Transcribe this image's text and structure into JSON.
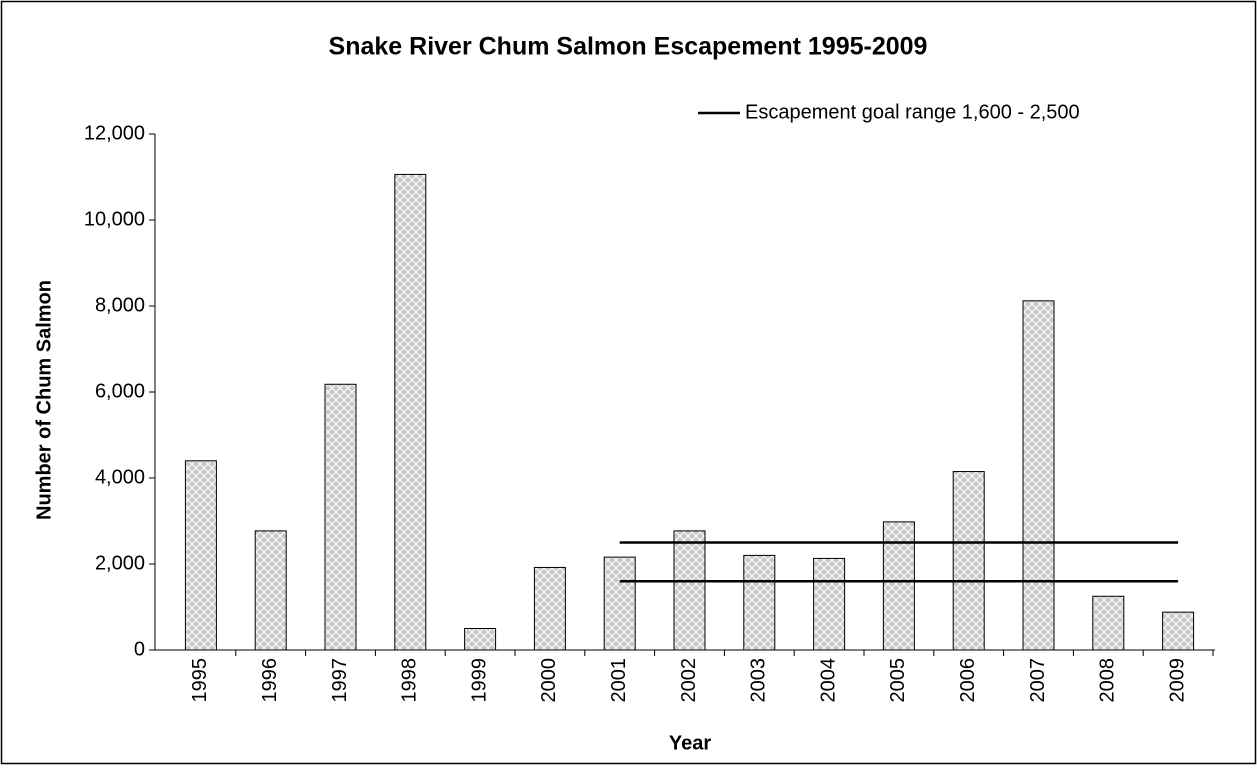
{
  "chart_data": {
    "type": "bar",
    "title": "Snake River Chum Salmon Escapement 1995-2009",
    "x_label": "Year",
    "y_label": "Number of Chum Salmon",
    "categories": [
      "1995",
      "1996",
      "1997",
      "1998",
      "1999",
      "2000",
      "2001",
      "2002",
      "2003",
      "2004",
      "2005",
      "2006",
      "2007",
      "2008",
      "2009"
    ],
    "values": [
      4400,
      2770,
      6180,
      11060,
      500,
      1920,
      2160,
      2770,
      2200,
      2130,
      2980,
      4150,
      8120,
      1250,
      880
    ],
    "color": "#c8c8c8",
    "goal_legend": "Escapement goal range 1,600 - 2,500",
    "goal_lines": [
      {
        "color": "#000000",
        "values": [
          null,
          null,
          null,
          null,
          null,
          null,
          2500,
          2500,
          2500,
          2500,
          2500,
          2500,
          2500,
          2500,
          2500
        ]
      },
      {
        "color": "#000000",
        "values": [
          null,
          null,
          null,
          null,
          null,
          null,
          1600,
          1600,
          1600,
          1600,
          1600,
          1600,
          1600,
          1600,
          1600
        ]
      }
    ],
    "ylim": [
      0,
      12000
    ],
    "yticks": [
      0,
      {
        "value": 2000,
        "label": "2,000"
      },
      {
        "value": 4000,
        "label": "4,000"
      },
      {
        "value": 6000,
        "label": "6,000"
      },
      {
        "value": 8000,
        "label": "8,000"
      },
      {
        "value": 10000,
        "label": "10,000"
      },
      {
        "value": 12000,
        "label": "12,000"
      }
    ],
    "grid": false
  }
}
